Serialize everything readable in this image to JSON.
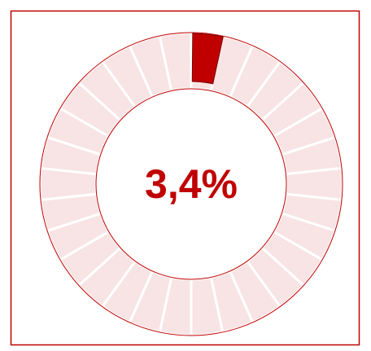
{
  "chart_data": {
    "type": "donut",
    "values": [
      3.4
    ],
    "value_labels": [
      "3,4%"
    ],
    "ylim": [
      0,
      100
    ],
    "color": "#c00000",
    "track_color": "#f8e4e4"
  }
}
